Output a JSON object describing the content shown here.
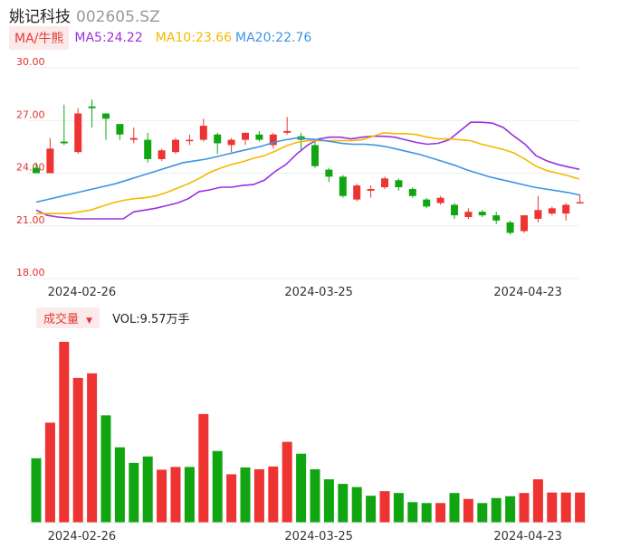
{
  "header": {
    "name": "姚记科技",
    "code": "002605.SZ"
  },
  "ma_legend": {
    "type_label": "MA/牛熊",
    "ma5": "MA5:24.22",
    "ma10": "MA10:23.66",
    "ma20": "MA20:22.76",
    "colors": {
      "ma5": "#9b30e0",
      "ma10": "#f5b800",
      "ma20": "#3d94e6",
      "up": "#ee3333",
      "down": "#11a611"
    }
  },
  "volume_legend": {
    "type_label": "成交量",
    "dropdown_icon": "triangle-down-icon",
    "vol_label": "VOL:9.57万手"
  },
  "chart_data": [
    {
      "type": "candlestick",
      "y_ticks": [
        "30.00",
        "27.00",
        "24.00",
        "21.00",
        "18.00"
      ],
      "ylim": [
        18,
        30
      ],
      "x_tick_labels": [
        "2024-02-26",
        "2024-03-25",
        "2024-04-23"
      ],
      "x_tick_index": [
        1,
        18,
        33
      ],
      "candles": [
        {
          "o": 24.3,
          "h": 24.6,
          "l": 24.0,
          "c": 24.0
        },
        {
          "o": 24.0,
          "h": 26.0,
          "l": 24.0,
          "c": 25.4
        },
        {
          "o": 25.8,
          "h": 27.9,
          "l": 25.6,
          "c": 25.7
        },
        {
          "o": 25.2,
          "h": 27.7,
          "l": 25.1,
          "c": 27.4
        },
        {
          "o": 27.8,
          "h": 28.2,
          "l": 26.6,
          "c": 27.7
        },
        {
          "o": 27.4,
          "h": 27.4,
          "l": 25.9,
          "c": 27.1
        },
        {
          "o": 26.8,
          "h": 26.8,
          "l": 25.9,
          "c": 26.2
        },
        {
          "o": 25.9,
          "h": 26.6,
          "l": 25.7,
          "c": 26.0
        },
        {
          "o": 25.9,
          "h": 26.3,
          "l": 24.6,
          "c": 24.8
        },
        {
          "o": 24.8,
          "h": 25.4,
          "l": 24.7,
          "c": 25.3
        },
        {
          "o": 25.2,
          "h": 26.0,
          "l": 25.1,
          "c": 25.9
        },
        {
          "o": 25.9,
          "h": 26.2,
          "l": 25.6,
          "c": 25.9
        },
        {
          "o": 25.9,
          "h": 27.1,
          "l": 25.8,
          "c": 26.7
        },
        {
          "o": 26.2,
          "h": 26.3,
          "l": 25.1,
          "c": 25.7
        },
        {
          "o": 25.6,
          "h": 26.0,
          "l": 25.2,
          "c": 25.9
        },
        {
          "o": 25.9,
          "h": 26.3,
          "l": 25.6,
          "c": 26.3
        },
        {
          "o": 26.2,
          "h": 26.4,
          "l": 25.8,
          "c": 25.9
        },
        {
          "o": 25.6,
          "h": 26.3,
          "l": 25.4,
          "c": 26.2
        },
        {
          "o": 26.3,
          "h": 27.2,
          "l": 26.2,
          "c": 26.4
        },
        {
          "o": 26.1,
          "h": 26.3,
          "l": 25.3,
          "c": 25.9
        },
        {
          "o": 25.6,
          "h": 25.8,
          "l": 24.3,
          "c": 24.4
        },
        {
          "o": 24.2,
          "h": 24.3,
          "l": 23.5,
          "c": 23.8
        },
        {
          "o": 23.8,
          "h": 23.9,
          "l": 22.6,
          "c": 22.7
        },
        {
          "o": 22.5,
          "h": 23.4,
          "l": 22.4,
          "c": 23.3
        },
        {
          "o": 23.0,
          "h": 23.3,
          "l": 22.6,
          "c": 23.1
        },
        {
          "o": 23.2,
          "h": 23.8,
          "l": 23.1,
          "c": 23.7
        },
        {
          "o": 23.6,
          "h": 23.7,
          "l": 23.0,
          "c": 23.2
        },
        {
          "o": 23.1,
          "h": 23.2,
          "l": 22.6,
          "c": 22.7
        },
        {
          "o": 22.5,
          "h": 22.6,
          "l": 22.0,
          "c": 22.1
        },
        {
          "o": 22.3,
          "h": 22.7,
          "l": 22.2,
          "c": 22.6
        },
        {
          "o": 22.2,
          "h": 22.3,
          "l": 21.4,
          "c": 21.6
        },
        {
          "o": 21.5,
          "h": 22.0,
          "l": 21.4,
          "c": 21.8
        },
        {
          "o": 21.8,
          "h": 21.9,
          "l": 21.5,
          "c": 21.6
        },
        {
          "o": 21.6,
          "h": 21.8,
          "l": 21.1,
          "c": 21.3
        },
        {
          "o": 21.2,
          "h": 21.3,
          "l": 20.5,
          "c": 20.6
        },
        {
          "o": 20.7,
          "h": 21.6,
          "l": 20.6,
          "c": 21.6
        },
        {
          "o": 21.4,
          "h": 22.7,
          "l": 21.2,
          "c": 21.9
        },
        {
          "o": 21.7,
          "h": 22.1,
          "l": 21.6,
          "c": 22.0
        },
        {
          "o": 21.7,
          "h": 22.3,
          "l": 21.3,
          "c": 22.2
        },
        {
          "o": 22.3,
          "h": 22.8,
          "l": 22.3,
          "c": 22.35
        }
      ],
      "series": [
        {
          "name": "MA5",
          "values": [
            21.9,
            21.6,
            21.5,
            21.45,
            21.4,
            21.4,
            21.4,
            21.4,
            21.4,
            21.8,
            21.9,
            22.0,
            22.15,
            22.3,
            22.55,
            22.95,
            23.05,
            23.2,
            23.2,
            23.3,
            23.35,
            23.6,
            24.1,
            24.5,
            25.1,
            25.6,
            25.95,
            26.05,
            26.05,
            25.95,
            26.05,
            26.1,
            26.1,
            26.05,
            25.9,
            25.75,
            25.65,
            25.7,
            25.9,
            26.4,
            26.9,
            26.9,
            26.85,
            26.6,
            26.1,
            25.65,
            25.0,
            24.7,
            24.5,
            24.35,
            24.22
          ]
        },
        {
          "name": "MA10",
          "values": [
            21.7,
            21.7,
            21.7,
            21.7,
            21.8,
            21.9,
            22.1,
            22.3,
            22.45,
            22.55,
            22.6,
            22.7,
            22.9,
            23.15,
            23.4,
            23.7,
            24.05,
            24.3,
            24.5,
            24.65,
            24.85,
            25.0,
            25.25,
            25.55,
            25.75,
            25.85,
            25.85,
            25.85,
            25.85,
            25.85,
            25.9,
            26.1,
            26.3,
            26.25,
            26.25,
            26.2,
            26.05,
            25.95,
            25.95,
            25.9,
            25.85,
            25.65,
            25.5,
            25.35,
            25.15,
            24.8,
            24.4,
            24.15,
            24.0,
            23.85,
            23.66
          ]
        },
        {
          "name": "MA20",
          "values": [
            22.35,
            22.5,
            22.65,
            22.8,
            22.95,
            23.1,
            23.25,
            23.4,
            23.6,
            23.8,
            24.0,
            24.2,
            24.4,
            24.6,
            24.7,
            24.8,
            24.95,
            25.1,
            25.25,
            25.4,
            25.55,
            25.75,
            25.9,
            26.0,
            25.95,
            25.9,
            25.8,
            25.7,
            25.65,
            25.65,
            25.6,
            25.5,
            25.35,
            25.2,
            25.05,
            24.85,
            24.65,
            24.45,
            24.2,
            24.0,
            23.8,
            23.65,
            23.5,
            23.35,
            23.2,
            23.1,
            23.0,
            22.9,
            22.76
          ]
        }
      ]
    },
    {
      "type": "bar",
      "title": "成交量",
      "x_tick_labels": [
        "2024-02-26",
        "2024-03-25",
        "2024-04-23"
      ],
      "values": [
        70.5,
        109.5,
        198,
        158.5,
        163.5,
        117.5,
        82.5,
        65.5,
        72.5,
        58,
        61,
        61,
        119,
        78.5,
        53,
        60.5,
        58.5,
        61.5,
        88.5,
        75.5,
        58.5,
        47.5,
        42.5,
        39,
        29.5,
        34.5,
        32.5,
        22.5,
        21.5,
        21.5,
        32.5,
        26,
        21.5,
        27,
        29,
        32.5,
        47.5,
        33,
        33,
        33
      ],
      "up": [
        false,
        true,
        true,
        true,
        true,
        false,
        false,
        false,
        false,
        true,
        true,
        false,
        true,
        false,
        true,
        false,
        true,
        true,
        true,
        false,
        false,
        false,
        false,
        false,
        false,
        true,
        false,
        false,
        false,
        true,
        false,
        true,
        false,
        false,
        false,
        true,
        true,
        true,
        true,
        true
      ]
    }
  ]
}
